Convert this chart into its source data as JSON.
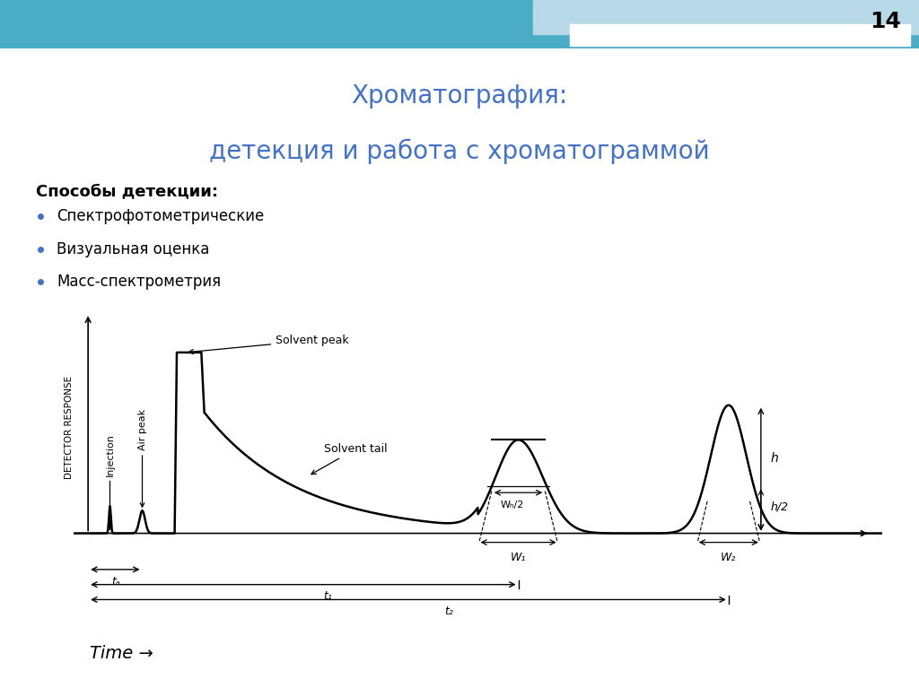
{
  "title_line1": "Хроматография:",
  "title_line2": "детекция и работа с хроматограммой",
  "title_color": "#4472C4",
  "title_fontsize": 20,
  "section_header": "Способы детекции:",
  "bullet_items": [
    "Спектрофотометрические",
    "Визуальная оценка",
    "Масс-спектрометрия"
  ],
  "bullet_color": "#4472C4",
  "bg_color": "#FFFFFF",
  "header_bg_color": "#4BACC6",
  "header_light_color": "#B8D9E8",
  "slide_number": "14",
  "chromatogram_annotations": {
    "injection": "Injection",
    "air_peak": "Air peak",
    "solvent_peak": "Solvent peak",
    "solvent_tail": "Solvent tail",
    "y_label": "DETECTOR RESPONSE",
    "time_label": "Time →",
    "wh2_label": "Wₕ/2",
    "h_label": "h",
    "h2_label": "h/2",
    "w1_label": "W₁",
    "w2_label": "W₂",
    "t_a_label": "tₐ",
    "t1_label": "t₁",
    "t2_label": "t₂"
  }
}
